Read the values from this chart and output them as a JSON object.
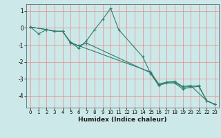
{
  "xlabel": "Humidex (Indice chaleur)",
  "xlim": [
    -0.5,
    23.5
  ],
  "ylim": [
    -4.7,
    1.4
  ],
  "yticks": [
    1,
    0,
    -1,
    -2,
    -3,
    -4
  ],
  "xticks": [
    0,
    1,
    2,
    3,
    4,
    5,
    6,
    7,
    8,
    9,
    10,
    11,
    12,
    13,
    14,
    15,
    16,
    17,
    18,
    19,
    20,
    21,
    22,
    23
  ],
  "background_color": "#cce8e8",
  "grid_color": "#e88888",
  "line_color": "#2e7d6e",
  "lines": [
    {
      "x": [
        0,
        1,
        2,
        3,
        4,
        5,
        6,
        7,
        8,
        9,
        10,
        11,
        14,
        15,
        16,
        17,
        18,
        19,
        20,
        21,
        22,
        23
      ],
      "y": [
        0.05,
        -0.35,
        -0.1,
        -0.2,
        -0.2,
        -0.85,
        -1.2,
        -0.75,
        -0.1,
        0.5,
        1.15,
        -0.1,
        -1.7,
        -2.7,
        -3.4,
        -3.25,
        -3.25,
        -3.6,
        -3.5,
        -3.45,
        -4.3,
        -4.5
      ]
    },
    {
      "x": [
        0,
        2,
        3,
        4,
        5,
        6,
        7,
        15,
        16,
        17,
        18,
        19,
        20,
        21,
        22,
        23
      ],
      "y": [
        0.05,
        -0.1,
        -0.2,
        -0.2,
        -0.9,
        -1.05,
        -0.9,
        -2.65,
        -3.35,
        -3.2,
        -3.2,
        -3.5,
        -3.45,
        -3.4,
        -4.3,
        -4.5
      ]
    },
    {
      "x": [
        0,
        2,
        3,
        4,
        5,
        6,
        15,
        16,
        17,
        18,
        19,
        20,
        22,
        23
      ],
      "y": [
        0.05,
        -0.1,
        -0.2,
        -0.2,
        -0.85,
        -1.05,
        -2.6,
        -3.3,
        -3.2,
        -3.15,
        -3.45,
        -3.4,
        -4.3,
        -4.5
      ]
    }
  ]
}
